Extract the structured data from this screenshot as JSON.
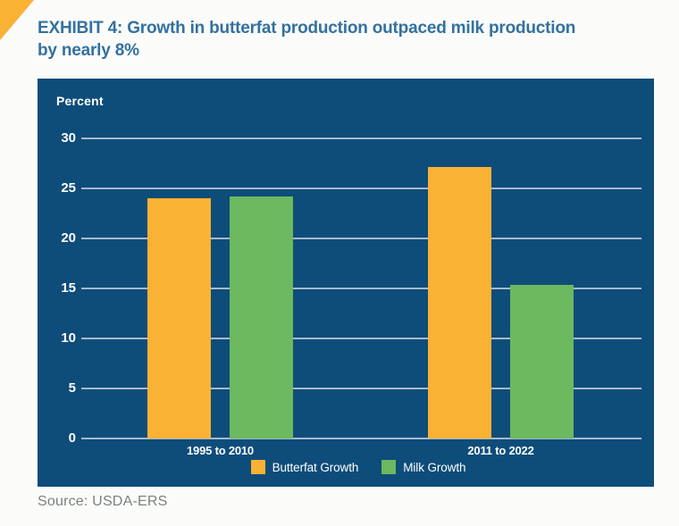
{
  "page": {
    "background": "#FBFBFA",
    "accent_triangle_color": "#F9B234"
  },
  "header": {
    "title_line1": "EXHIBIT 4: Growth in butterfat production outpaced milk production",
    "title_line2": "by nearly 8%",
    "title_color": "#33719F"
  },
  "source": {
    "text": "Source: USDA-ERS",
    "color": "#7C8184"
  },
  "chart_data": {
    "type": "bar",
    "title": "EXHIBIT 4: Growth in butterfat production outpaced milk production by nearly 8%",
    "ylabel": "Percent",
    "xlabel": "",
    "categories": [
      "1995 to 2010",
      "2011 to 2022"
    ],
    "series": [
      {
        "name": "Butterfat Growth",
        "color": "#F9B234",
        "values": [
          24.0,
          27.1
        ]
      },
      {
        "name": "Milk Growth",
        "color": "#6CB95F",
        "values": [
          24.2,
          15.4
        ]
      }
    ],
    "ylim": [
      0,
      30
    ],
    "yticks": [
      0,
      5,
      10,
      15,
      20,
      25,
      30
    ],
    "grid": true,
    "legend_position": "bottom-center",
    "panel_background": "#0E4C7A",
    "gridline_color": "#A6BACC",
    "tick_label_color": "#FFFFFF"
  }
}
